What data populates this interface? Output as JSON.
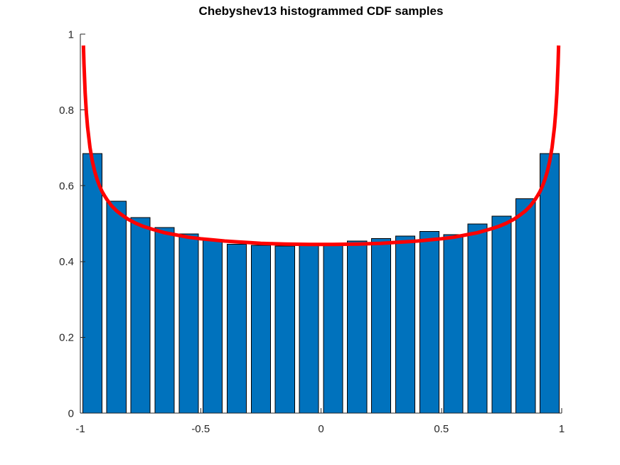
{
  "chart_data": {
    "type": "bar",
    "subtype": "histogram-with-density-curve",
    "title": "Chebyshev13 histogrammed CDF samples",
    "xlabel": "",
    "ylabel": "",
    "xlim": [
      -1,
      1
    ],
    "ylim": [
      0,
      1
    ],
    "grid": false,
    "legend_position": "none",
    "background_color": "#ffffff",
    "axis_color": "#262626",
    "bar_color": "#0072BD",
    "bar_edge_color": "#000000",
    "bar_relative_width": 0.8,
    "bin_width": 0.1,
    "xticks": {
      "values": [
        -1,
        -0.5,
        0,
        0.5,
        1
      ],
      "labels": [
        "-1",
        "-0.5",
        "0",
        "0.5",
        "1"
      ]
    },
    "yticks": {
      "values": [
        0,
        0.2,
        0.4,
        0.6,
        0.8,
        1
      ],
      "labels": [
        "0",
        "0.2",
        "0.4",
        "0.6",
        "0.8",
        "1"
      ]
    },
    "categories": [
      -0.95,
      -0.85,
      -0.75,
      -0.65,
      -0.55,
      -0.45,
      -0.35,
      -0.25,
      -0.15,
      -0.05,
      0.05,
      0.15,
      0.25,
      0.35,
      0.45,
      0.55,
      0.65,
      0.75,
      0.85,
      0.95
    ],
    "values": [
      0.685,
      0.559,
      0.516,
      0.49,
      0.473,
      0.457,
      0.446,
      0.443,
      0.441,
      0.442,
      0.443,
      0.454,
      0.461,
      0.467,
      0.479,
      0.471,
      0.499,
      0.52,
      0.566,
      0.685
    ],
    "overlay_line": {
      "name": "chebyshev-density-curve",
      "color": "#FF0000",
      "stroke_width": 5,
      "points": [
        [
          -0.9872,
          0.97
        ],
        [
          -0.985,
          0.922
        ],
        [
          -0.98,
          0.845
        ],
        [
          -0.975,
          0.793
        ],
        [
          -0.97,
          0.755
        ],
        [
          -0.96,
          0.701
        ],
        [
          -0.95,
          0.664
        ],
        [
          -0.94,
          0.637
        ],
        [
          -0.93,
          0.616
        ],
        [
          -0.92,
          0.599
        ],
        [
          -0.91,
          0.585
        ],
        [
          -0.9,
          0.574
        ],
        [
          -0.89,
          0.564
        ],
        [
          -0.87,
          0.547
        ],
        [
          -0.85,
          0.534
        ],
        [
          -0.83,
          0.524
        ],
        [
          -0.8,
          0.511
        ],
        [
          -0.77,
          0.501
        ],
        [
          -0.74,
          0.493
        ],
        [
          -0.7,
          0.485
        ],
        [
          -0.65,
          0.476
        ],
        [
          -0.6,
          0.47
        ],
        [
          -0.55,
          0.464
        ],
        [
          -0.5,
          0.46
        ],
        [
          -0.45,
          0.457
        ],
        [
          -0.4,
          0.454
        ],
        [
          -0.35,
          0.452
        ],
        [
          -0.3,
          0.45
        ],
        [
          -0.25,
          0.448
        ],
        [
          -0.2,
          0.447
        ],
        [
          -0.15,
          0.446
        ],
        [
          -0.1,
          0.4455
        ],
        [
          -0.05,
          0.445
        ],
        [
          0,
          0.445
        ],
        [
          0.05,
          0.445
        ],
        [
          0.1,
          0.4455
        ],
        [
          0.15,
          0.446
        ],
        [
          0.2,
          0.447
        ],
        [
          0.25,
          0.448
        ],
        [
          0.3,
          0.45
        ],
        [
          0.35,
          0.452
        ],
        [
          0.4,
          0.454
        ],
        [
          0.45,
          0.457
        ],
        [
          0.5,
          0.46
        ],
        [
          0.55,
          0.464
        ],
        [
          0.6,
          0.47
        ],
        [
          0.65,
          0.476
        ],
        [
          0.7,
          0.485
        ],
        [
          0.74,
          0.493
        ],
        [
          0.77,
          0.501
        ],
        [
          0.8,
          0.511
        ],
        [
          0.83,
          0.524
        ],
        [
          0.85,
          0.534
        ],
        [
          0.87,
          0.547
        ],
        [
          0.89,
          0.564
        ],
        [
          0.9,
          0.574
        ],
        [
          0.91,
          0.585
        ],
        [
          0.92,
          0.599
        ],
        [
          0.93,
          0.616
        ],
        [
          0.94,
          0.637
        ],
        [
          0.95,
          0.664
        ],
        [
          0.96,
          0.701
        ],
        [
          0.97,
          0.755
        ],
        [
          0.975,
          0.793
        ],
        [
          0.98,
          0.845
        ],
        [
          0.985,
          0.922
        ],
        [
          0.9872,
          0.97
        ]
      ]
    }
  }
}
